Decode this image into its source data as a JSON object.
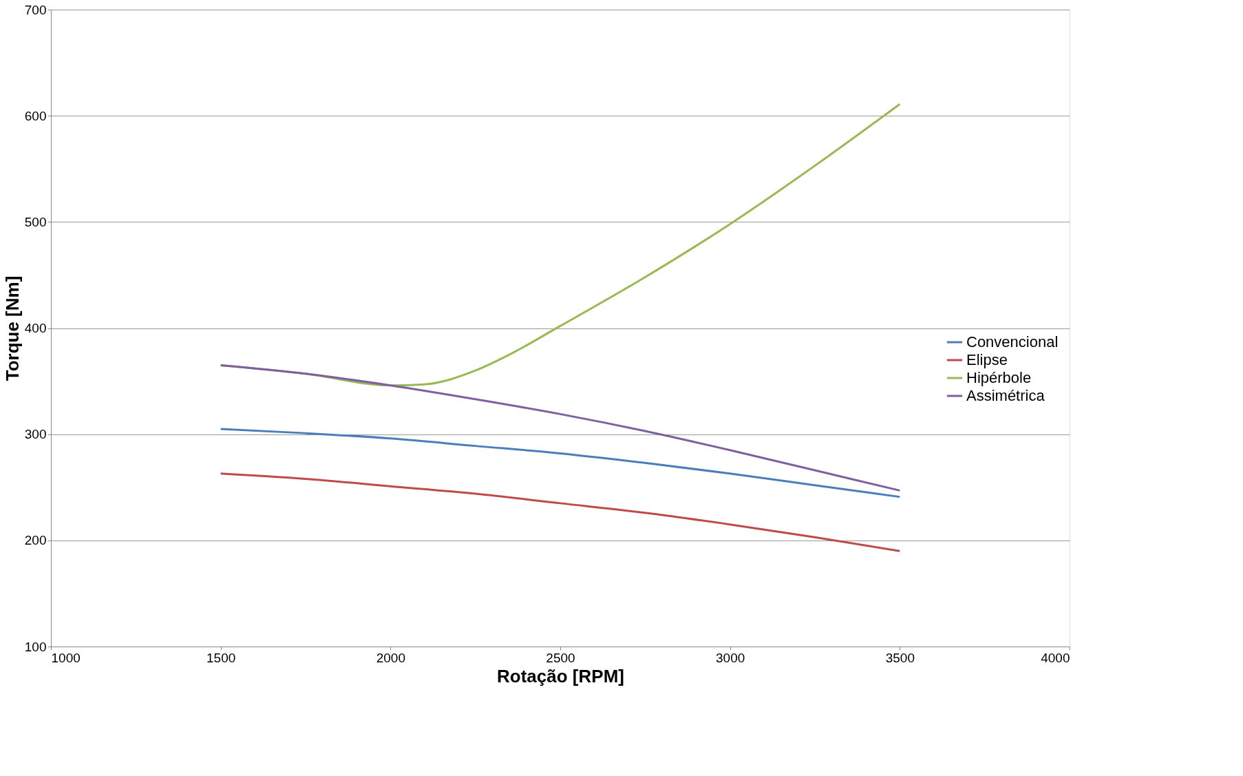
{
  "chart_data": {
    "type": "line",
    "xlabel": "Rotação [RPM]",
    "ylabel": "Torque [Nm]",
    "xlim": [
      1000,
      4000
    ],
    "xticks": [
      1000,
      1500,
      2000,
      2500,
      3000,
      3500,
      4000
    ],
    "ylim": [
      100,
      700
    ],
    "yticks": [
      100,
      200,
      300,
      400,
      500,
      600,
      700
    ],
    "grid": "y",
    "legend": "right",
    "marker": "none",
    "line_style": "solid",
    "series": [
      {
        "name": "Convencional",
        "color": "#4a7ebb",
        "x": [
          1500,
          1750,
          2000,
          2250,
          2500,
          2750,
          3000,
          3250,
          3500
        ],
        "values": [
          305,
          301,
          296,
          289,
          282,
          273,
          263,
          252,
          241
        ]
      },
      {
        "name": "Elipse",
        "color": "#be4b48",
        "x": [
          1500,
          1750,
          2000,
          2250,
          2500,
          2750,
          3000,
          3250,
          3500
        ],
        "values": [
          263,
          258,
          251,
          244,
          235,
          226,
          215,
          203,
          190
        ]
      },
      {
        "name": "Hipérbole",
        "color": "#98b954",
        "x": [
          1500,
          1750,
          2000,
          2100,
          2250,
          2350,
          2500,
          2750,
          3000,
          3250,
          3500
        ],
        "values": [
          365,
          357,
          346,
          347,
          360,
          375,
          402,
          448,
          498,
          553,
          611
        ]
      },
      {
        "name": "Assimétrica",
        "color": "#7d60a0",
        "x": [
          1500,
          1750,
          2000,
          2250,
          2500,
          2750,
          3000,
          3250,
          3500
        ],
        "values": [
          365,
          357,
          346,
          333,
          319,
          303,
          285,
          266,
          247
        ]
      }
    ]
  }
}
